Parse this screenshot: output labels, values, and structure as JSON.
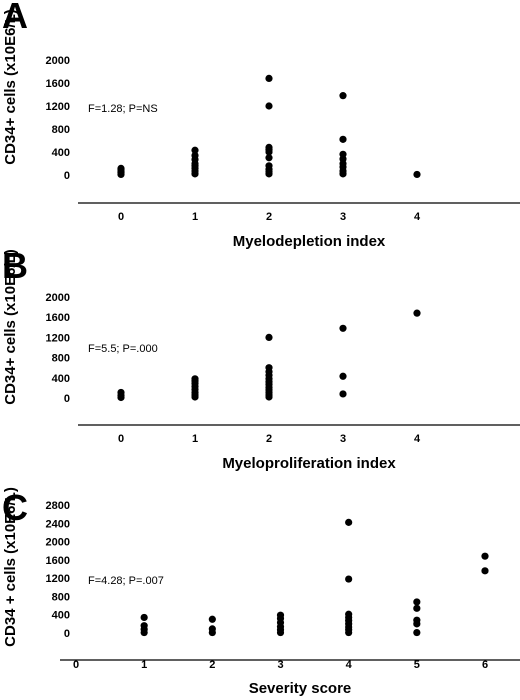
{
  "chart_data": [
    {
      "panel": "A",
      "type": "scatter",
      "xlabel": "Myelodepletion index",
      "ylabel": "CD34+ cells (x10E6/L)",
      "annotation": "F=1.28; P=NS",
      "x_ticks": [
        "0",
        "1",
        "2",
        "3",
        "4"
      ],
      "y_ticks": [
        "0",
        "400",
        "800",
        "1200",
        "1600",
        "2000"
      ],
      "xlim": [
        -0.4,
        4.6
      ],
      "ylim": [
        0,
        2000
      ],
      "points": [
        {
          "x": 0,
          "y": 10
        },
        {
          "x": 0,
          "y": 40
        },
        {
          "x": 0,
          "y": 60
        },
        {
          "x": 0,
          "y": 90
        },
        {
          "x": 0,
          "y": 115
        },
        {
          "x": 1,
          "y": 20
        },
        {
          "x": 1,
          "y": 70
        },
        {
          "x": 1,
          "y": 120
        },
        {
          "x": 1,
          "y": 160
        },
        {
          "x": 1,
          "y": 200
        },
        {
          "x": 1,
          "y": 270
        },
        {
          "x": 1,
          "y": 340
        },
        {
          "x": 1,
          "y": 430
        },
        {
          "x": 2,
          "y": 20
        },
        {
          "x": 2,
          "y": 60
        },
        {
          "x": 2,
          "y": 100
        },
        {
          "x": 2,
          "y": 160
        },
        {
          "x": 2,
          "y": 300
        },
        {
          "x": 2,
          "y": 400
        },
        {
          "x": 2,
          "y": 440
        },
        {
          "x": 2,
          "y": 480
        },
        {
          "x": 2,
          "y": 1200
        },
        {
          "x": 2,
          "y": 1680
        },
        {
          "x": 3,
          "y": 20
        },
        {
          "x": 3,
          "y": 70
        },
        {
          "x": 3,
          "y": 140
        },
        {
          "x": 3,
          "y": 200
        },
        {
          "x": 3,
          "y": 280
        },
        {
          "x": 3,
          "y": 360
        },
        {
          "x": 3,
          "y": 620
        },
        {
          "x": 3,
          "y": 1380
        },
        {
          "x": 4,
          "y": 10
        }
      ]
    },
    {
      "panel": "B",
      "type": "scatter",
      "xlabel": "Myeloproliferation index",
      "ylabel": "CD34+ cells (x10E6/L)",
      "annotation": "F=5.5; P=.000",
      "x_ticks": [
        "0",
        "1",
        "2",
        "3",
        "4"
      ],
      "y_ticks": [
        "0",
        "400",
        "800",
        "1200",
        "1600",
        "2000"
      ],
      "xlim": [
        -0.4,
        4.6
      ],
      "ylim": [
        0,
        2000
      ],
      "points": [
        {
          "x": 0,
          "y": 10
        },
        {
          "x": 0,
          "y": 50
        },
        {
          "x": 0,
          "y": 110
        },
        {
          "x": 1,
          "y": 20
        },
        {
          "x": 1,
          "y": 60
        },
        {
          "x": 1,
          "y": 110
        },
        {
          "x": 1,
          "y": 170
        },
        {
          "x": 1,
          "y": 230
        },
        {
          "x": 1,
          "y": 290
        },
        {
          "x": 1,
          "y": 340
        },
        {
          "x": 1,
          "y": 380
        },
        {
          "x": 2,
          "y": 20
        },
        {
          "x": 2,
          "y": 60
        },
        {
          "x": 2,
          "y": 110
        },
        {
          "x": 2,
          "y": 160
        },
        {
          "x": 2,
          "y": 210
        },
        {
          "x": 2,
          "y": 270
        },
        {
          "x": 2,
          "y": 320
        },
        {
          "x": 2,
          "y": 380
        },
        {
          "x": 2,
          "y": 450
        },
        {
          "x": 2,
          "y": 520
        },
        {
          "x": 2,
          "y": 600
        },
        {
          "x": 2,
          "y": 1200
        },
        {
          "x": 3,
          "y": 80
        },
        {
          "x": 3,
          "y": 430
        },
        {
          "x": 3,
          "y": 1380
        },
        {
          "x": 4,
          "y": 1680
        }
      ]
    },
    {
      "panel": "C",
      "type": "scatter",
      "xlabel": "Severity score",
      "ylabel": "CD34 + cells (x10E6/L)",
      "annotation": "F=4.28; P=.007",
      "x_ticks": [
        "0",
        "1",
        "2",
        "3",
        "4",
        "5",
        "6"
      ],
      "y_ticks": [
        "0",
        "400",
        "800",
        "1200",
        "1600",
        "2000",
        "2400",
        "2800"
      ],
      "xlim": [
        0,
        6.5
      ],
      "ylim": [
        0,
        2800
      ],
      "points": [
        {
          "x": 1,
          "y": 10
        },
        {
          "x": 1,
          "y": 80
        },
        {
          "x": 1,
          "y": 160
        },
        {
          "x": 1,
          "y": 340
        },
        {
          "x": 2,
          "y": 10
        },
        {
          "x": 2,
          "y": 90
        },
        {
          "x": 2,
          "y": 300
        },
        {
          "x": 3,
          "y": 10
        },
        {
          "x": 3,
          "y": 70
        },
        {
          "x": 3,
          "y": 140
        },
        {
          "x": 3,
          "y": 230
        },
        {
          "x": 3,
          "y": 320
        },
        {
          "x": 3,
          "y": 390
        },
        {
          "x": 4,
          "y": 10
        },
        {
          "x": 4,
          "y": 70
        },
        {
          "x": 4,
          "y": 130
        },
        {
          "x": 4,
          "y": 200
        },
        {
          "x": 4,
          "y": 270
        },
        {
          "x": 4,
          "y": 340
        },
        {
          "x": 4,
          "y": 410
        },
        {
          "x": 4,
          "y": 1180
        },
        {
          "x": 4,
          "y": 2420
        },
        {
          "x": 5,
          "y": 10
        },
        {
          "x": 5,
          "y": 200
        },
        {
          "x": 5,
          "y": 280
        },
        {
          "x": 5,
          "y": 540
        },
        {
          "x": 5,
          "y": 680
        },
        {
          "x": 6,
          "y": 1360
        },
        {
          "x": 6,
          "y": 1680
        }
      ]
    }
  ]
}
